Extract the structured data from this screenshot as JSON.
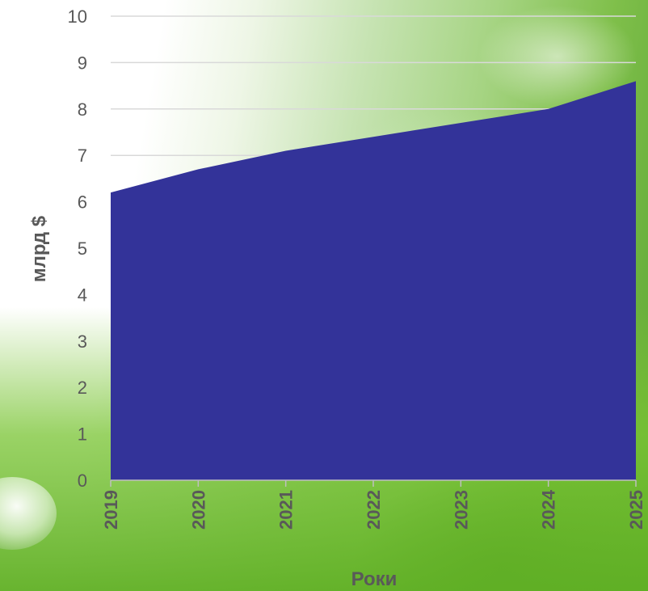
{
  "chart_data": {
    "type": "area",
    "x": [
      "2019",
      "2020",
      "2021",
      "2022",
      "2023",
      "2024",
      "2025"
    ],
    "series": [
      {
        "values": [
          6.2,
          6.7,
          7.1,
          7.4,
          7.7,
          8.0,
          8.6
        ]
      }
    ],
    "xlabel": "Роки",
    "ylabel": "млрд $",
    "ylim": [
      0,
      10
    ],
    "yticks": [
      "0",
      "1",
      "2",
      "3",
      "4",
      "5",
      "6",
      "7",
      "8",
      "9",
      "10"
    ],
    "grid": true,
    "legend": "none"
  },
  "colors": {
    "area_fill": "#333399",
    "gridline": "#d9d9d9",
    "text": "#595959"
  }
}
